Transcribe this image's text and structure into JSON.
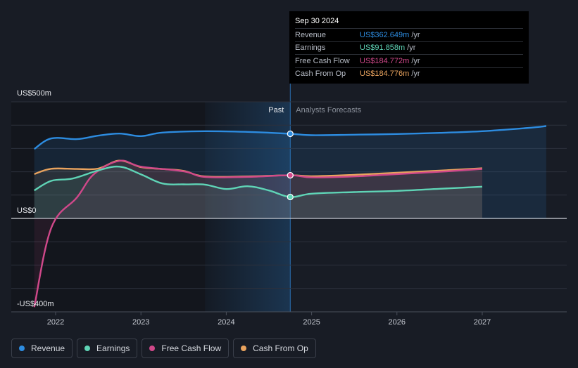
{
  "chart_data": {
    "type": "line",
    "x_unit": "year",
    "x_ticks": [
      "2022",
      "2023",
      "2024",
      "2025",
      "2026",
      "2027"
    ],
    "y_ticks": [
      {
        "value": 500,
        "label": "US$500m"
      },
      {
        "value": 0,
        "label": "US$0"
      },
      {
        "value": -400,
        "label": "-US$400m"
      }
    ],
    "ylim": [
      -400,
      500
    ],
    "past_label": "Past",
    "forecast_label": "Analysts Forecasts",
    "past_forecast_boundary": 2024.75,
    "series": [
      {
        "name": "Revenue",
        "color": "#2d8ce0",
        "points": [
          [
            2021.75,
            298
          ],
          [
            2021.95,
            343
          ],
          [
            2022.25,
            340
          ],
          [
            2022.5,
            355
          ],
          [
            2022.75,
            364
          ],
          [
            2023.0,
            353
          ],
          [
            2023.25,
            368
          ],
          [
            2023.75,
            374
          ],
          [
            2024.25,
            371
          ],
          [
            2024.75,
            363
          ],
          [
            2025.0,
            357
          ],
          [
            2025.5,
            359
          ],
          [
            2026.0,
            362
          ],
          [
            2026.5,
            367
          ],
          [
            2027.0,
            374
          ],
          [
            2027.5,
            387
          ],
          [
            2027.75,
            396
          ]
        ]
      },
      {
        "name": "Earnings",
        "color": "#5fd4b6",
        "points": [
          [
            2021.75,
            120
          ],
          [
            2021.95,
            161
          ],
          [
            2022.2,
            171
          ],
          [
            2022.5,
            206
          ],
          [
            2022.75,
            222
          ],
          [
            2023.0,
            189
          ],
          [
            2023.25,
            150
          ],
          [
            2023.5,
            146
          ],
          [
            2023.75,
            145
          ],
          [
            2024.0,
            126
          ],
          [
            2024.25,
            138
          ],
          [
            2024.5,
            120
          ],
          [
            2024.75,
            92
          ],
          [
            2025.0,
            106
          ],
          [
            2025.5,
            113
          ],
          [
            2026.0,
            118
          ],
          [
            2026.5,
            127
          ],
          [
            2027.0,
            136
          ]
        ]
      },
      {
        "name": "Free Cash Flow",
        "color": "#d0488a",
        "points": [
          [
            2021.75,
            -380
          ],
          [
            2021.95,
            -40
          ],
          [
            2022.25,
            90
          ],
          [
            2022.45,
            190
          ],
          [
            2022.75,
            247
          ],
          [
            2023.0,
            222
          ],
          [
            2023.5,
            202
          ],
          [
            2023.75,
            178
          ],
          [
            2024.25,
            178
          ],
          [
            2024.75,
            185
          ],
          [
            2025.0,
            176
          ],
          [
            2025.5,
            180
          ],
          [
            2026.0,
            190
          ],
          [
            2026.5,
            200
          ],
          [
            2027.0,
            212
          ]
        ]
      },
      {
        "name": "Cash From Op",
        "color": "#e9a35e",
        "points": [
          [
            2021.75,
            190
          ],
          [
            2021.95,
            213
          ],
          [
            2022.25,
            212
          ],
          [
            2022.5,
            214
          ],
          [
            2022.75,
            248
          ],
          [
            2023.0,
            220
          ],
          [
            2023.25,
            212
          ],
          [
            2023.5,
            204
          ],
          [
            2023.75,
            180
          ],
          [
            2024.25,
            180
          ],
          [
            2024.75,
            185
          ],
          [
            2025.0,
            181
          ],
          [
            2025.5,
            187
          ],
          [
            2026.0,
            196
          ],
          [
            2026.5,
            205
          ],
          [
            2027.0,
            215
          ]
        ]
      }
    ]
  },
  "tooltip": {
    "date": "Sep 30 2024",
    "rows": [
      {
        "label": "Revenue",
        "value": "US$362.649m",
        "unit": "/yr",
        "color": "#2d8ce0"
      },
      {
        "label": "Earnings",
        "value": "US$91.858m",
        "unit": "/yr",
        "color": "#5fd4b6"
      },
      {
        "label": "Free Cash Flow",
        "value": "US$184.772m",
        "unit": "/yr",
        "color": "#d0488a"
      },
      {
        "label": "Cash From Op",
        "value": "US$184.776m",
        "unit": "/yr",
        "color": "#e9a35e"
      }
    ]
  },
  "legend": [
    {
      "label": "Revenue",
      "color": "#2d8ce0"
    },
    {
      "label": "Earnings",
      "color": "#5fd4b6"
    },
    {
      "label": "Free Cash Flow",
      "color": "#d0488a"
    },
    {
      "label": "Cash From Op",
      "color": "#e9a35e"
    }
  ]
}
